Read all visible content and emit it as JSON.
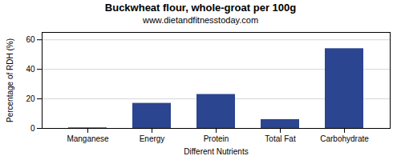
{
  "chart_data": {
    "type": "bar",
    "title": "Buckwheat flour, whole-groat per 100g",
    "subtitle": "www.dietandfitnesstoday.com",
    "categories": [
      "Manganese",
      "Energy",
      "Protein",
      "Total Fat",
      "Carbohydrate"
    ],
    "values": [
      0.4,
      17,
      23,
      6,
      54
    ],
    "color": "#2b4590",
    "xlabel": "Different Nutrients",
    "ylabel": "Percentage of RDH (%)",
    "ylim": [
      0,
      65
    ],
    "yticks": [
      0,
      20,
      40,
      60
    ],
    "grid": true
  }
}
